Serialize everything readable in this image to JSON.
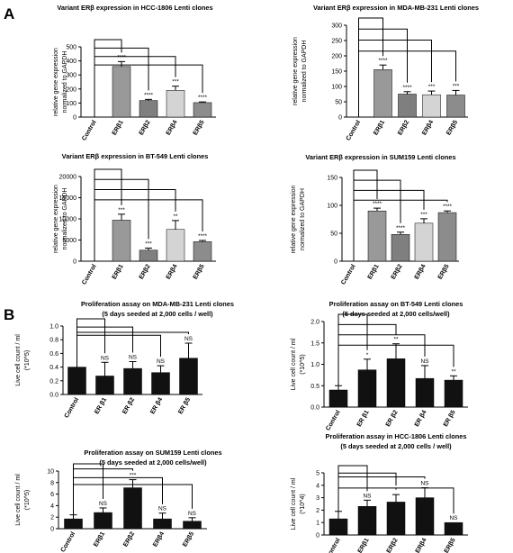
{
  "panels": {
    "a": "A",
    "b": "B"
  },
  "colors": {
    "black": "#111111",
    "dark_gray": "#7f7f7f",
    "gray": "#999999",
    "light_gray": "#d4d4d4",
    "mid_gray": "#8c8c8c"
  },
  "chart_data": [
    {
      "type": "bar",
      "title": "Variant ERβ expression in HCC-1806 Lenti clones",
      "subtitle": "",
      "ylabel_lines": [
        "relative gene expression",
        "normalized to GAPDH"
      ],
      "categories": [
        "Control",
        "ERβ1",
        "ERβ2",
        "ERβ4",
        "ERβ5"
      ],
      "values": [
        0,
        360,
        118,
        190,
        103
      ],
      "errors": [
        0,
        35,
        8,
        30,
        5
      ],
      "colors": [
        "#111111",
        "#999999",
        "#7f7f7f",
        "#d4d4d4",
        "#8c8c8c"
      ],
      "annotations": [
        "",
        "****",
        "****",
        "***",
        "****"
      ],
      "yticks": [
        "0",
        "100",
        "200",
        "300",
        "400",
        "500"
      ],
      "ylim": [
        0,
        500
      ]
    },
    {
      "type": "bar",
      "title": "Variant ERβ expression in MDA-MB-231 Lenti clones",
      "subtitle": "",
      "ylabel_lines": [
        "relative gene expression",
        "normalized to GAPDH"
      ],
      "categories": [
        "Control",
        "ERβ1",
        "ERβ2",
        "ERβ4",
        "ERβ5"
      ],
      "values": [
        0,
        155,
        75,
        73,
        72
      ],
      "errors": [
        0,
        15,
        8,
        12,
        15
      ],
      "colors": [
        "#111111",
        "#999999",
        "#7f7f7f",
        "#d4d4d4",
        "#8c8c8c"
      ],
      "annotations": [
        "",
        "****",
        "****",
        "***",
        "***"
      ],
      "yticks": [
        "0",
        "50",
        "100",
        "150",
        "200",
        "250",
        "300"
      ],
      "ylim": [
        0,
        300
      ]
    },
    {
      "type": "bar",
      "title": "Variant ERβ expression in BT-549 Lenti clones",
      "subtitle": "",
      "ylabel_lines": [
        "relative gene expression",
        "normalized to GAPDH"
      ],
      "categories": [
        "Control",
        "ERβ1",
        "ERβ2",
        "ERβ4",
        "ERβ5"
      ],
      "values": [
        0,
        9700,
        2600,
        7500,
        4600
      ],
      "errors": [
        0,
        1400,
        500,
        2100,
        300
      ],
      "colors": [
        "#111111",
        "#999999",
        "#7f7f7f",
        "#d4d4d4",
        "#8c8c8c"
      ],
      "annotations": [
        "",
        "***",
        "***",
        "**",
        "****"
      ],
      "yticks": [
        "0",
        "5000",
        "10000",
        "15000",
        "20000"
      ],
      "ylim": [
        0,
        20000
      ]
    },
    {
      "type": "bar",
      "title": "Variant ERβ expression in SUM159 Lenti clones",
      "subtitle": "",
      "ylabel_lines": [
        "relative gene expression",
        "normalized to GAPDH"
      ],
      "categories": [
        "Control",
        "ERβ1",
        "ERβ2",
        "ERβ4",
        "ERβ5"
      ],
      "values": [
        0,
        90,
        48,
        68,
        87
      ],
      "errors": [
        0,
        5,
        4,
        8,
        3
      ],
      "colors": [
        "#111111",
        "#999999",
        "#7f7f7f",
        "#d4d4d4",
        "#8c8c8c"
      ],
      "annotations": [
        "",
        "****",
        "****",
        "***",
        "****"
      ],
      "yticks": [
        "0",
        "50",
        "100",
        "150"
      ],
      "ylim": [
        0,
        150
      ]
    },
    {
      "type": "bar",
      "title": "Proliferation assay on MDA-MB-231 Lenti clones",
      "subtitle": "(5 days seeded at 2,000 cells / well)",
      "ylabel_lines": [
        "Live cell count / ml",
        "(*10^5)"
      ],
      "categories": [
        "Control",
        "ER β1",
        "ER β2",
        "ER β4",
        "ER β5"
      ],
      "values": [
        0.4,
        0.27,
        0.38,
        0.32,
        0.53
      ],
      "errors": [
        0,
        0.2,
        0.1,
        0.1,
        0.22
      ],
      "colors": [
        "#111111",
        "#111111",
        "#111111",
        "#111111",
        "#111111"
      ],
      "annotations": [
        "",
        "NS",
        "NS",
        "NS",
        "NS"
      ],
      "yticks": [
        "0.0",
        "0.2",
        "0.4",
        "0.6",
        "0.8",
        "1.0"
      ],
      "ylim": [
        0,
        1.0
      ]
    },
    {
      "type": "bar",
      "title": "Proliferation assay on BT-549 Lenti clones",
      "subtitle": "(5 days seeded at 2,000 cells/well)",
      "ylabel_lines": [
        "Live cell count / ml",
        "(*10^5)"
      ],
      "categories": [
        "Control",
        "ER β1",
        "ER β2",
        "ER β4",
        "ER β5"
      ],
      "values": [
        0.4,
        0.87,
        1.13,
        0.67,
        0.63
      ],
      "errors": [
        0.1,
        0.25,
        0.35,
        0.3,
        0.1
      ],
      "colors": [
        "#111111",
        "#111111",
        "#111111",
        "#111111",
        "#111111"
      ],
      "annotations": [
        "",
        "*",
        "**",
        "NS",
        "**"
      ],
      "yticks": [
        "0.0",
        "0.5",
        "1.0",
        "1.5",
        "2.0"
      ],
      "ylim": [
        0,
        2.0
      ]
    },
    {
      "type": "bar",
      "title": "Proliferation assay on SUM159 Lenti clones",
      "subtitle": "(5 days seeded at 2,000 cells/well)",
      "ylabel_lines": [
        "Live cell count / ml",
        "(*10^5)"
      ],
      "categories": [
        "Control",
        "ERβ1",
        "ERβ2",
        "ERβ4",
        "ERβ5"
      ],
      "values": [
        1.7,
        2.8,
        7.1,
        1.7,
        1.3
      ],
      "errors": [
        0.7,
        0.8,
        1.4,
        1.0,
        0.6
      ],
      "colors": [
        "#111111",
        "#111111",
        "#111111",
        "#111111",
        "#111111"
      ],
      "annotations": [
        "",
        "NS",
        "***",
        "NS",
        "NS"
      ],
      "yticks": [
        "0",
        "2",
        "4",
        "6",
        "8",
        "10"
      ],
      "ylim": [
        0,
        10
      ]
    },
    {
      "type": "bar",
      "title": "Proliferation assay in HCC-1806 Lenti clones",
      "subtitle": "(5 days seeded at 2,000 cells / well)",
      "ylabel_lines": [
        "Live cell count / ml",
        "(*10^4)"
      ],
      "categories": [
        "Control",
        "ERβ1",
        "ERβ2",
        "ERβ4",
        "ERβ5"
      ],
      "values": [
        1.3,
        2.3,
        2.65,
        3.0,
        1.0
      ],
      "errors": [
        0.6,
        0.5,
        0.6,
        0.8,
        0
      ],
      "colors": [
        "#111111",
        "#111111",
        "#111111",
        "#111111",
        "#111111"
      ],
      "annotations": [
        "",
        "NS",
        "*",
        "NS",
        "NS"
      ],
      "yticks": [
        "0",
        "1",
        "2",
        "3",
        "4",
        "5"
      ],
      "ylim": [
        0,
        5
      ]
    }
  ]
}
